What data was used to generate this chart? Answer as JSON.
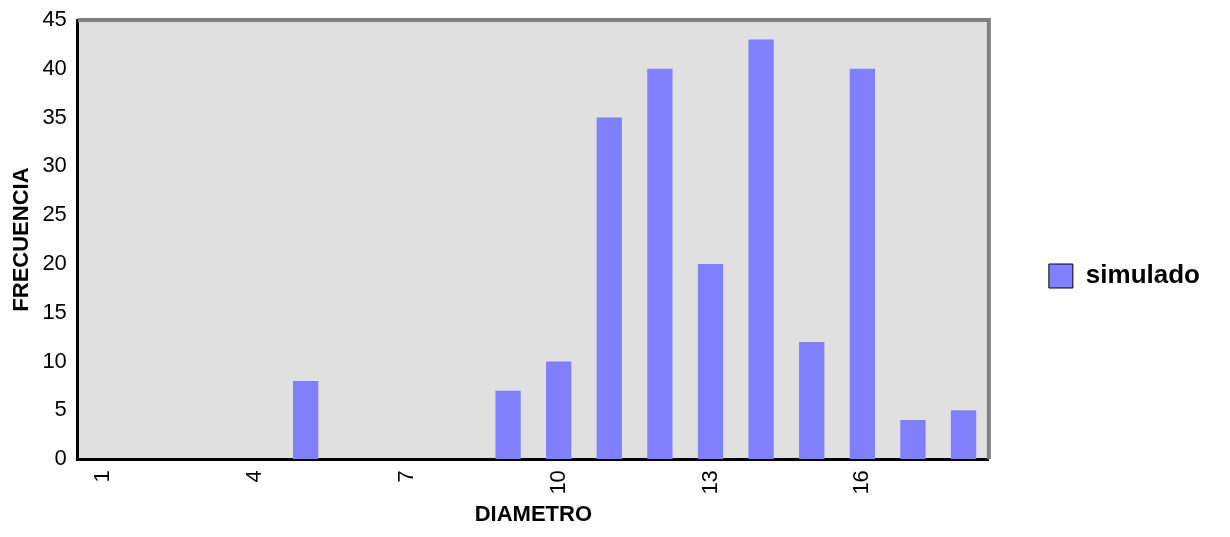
{
  "chart_data": {
    "type": "bar",
    "xlabel": "DIAMETRO",
    "ylabel": "FRECUENCIA",
    "categories": [
      "1",
      null,
      null,
      "4",
      null,
      null,
      "7",
      null,
      null,
      "10",
      null,
      null,
      "13",
      null,
      null,
      "16",
      null,
      null
    ],
    "series": [
      {
        "name": "simulado",
        "color": "#8080ff",
        "values": [
          0,
          0,
          0,
          0,
          8,
          0,
          0,
          0,
          7,
          10,
          35,
          40,
          20,
          43,
          12,
          40,
          4,
          5
        ]
      }
    ],
    "ylim": [
      0,
      45
    ],
    "yticks": [
      0,
      5,
      10,
      15,
      20,
      25,
      30,
      35,
      40,
      45
    ],
    "grid": false,
    "legend": "right"
  }
}
